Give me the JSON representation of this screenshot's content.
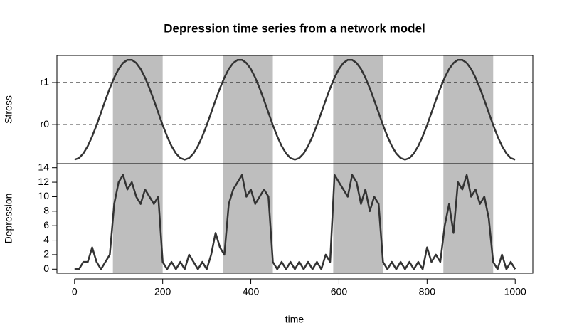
{
  "chart_data": [
    {
      "type": "line",
      "title": "Depression time series from a network model",
      "ylabel": "Stress",
      "color": "#333333",
      "shade_color": "#bebebe",
      "shaded_intervals": [
        [
          87,
          200
        ],
        [
          337,
          450
        ],
        [
          587,
          700
        ],
        [
          837,
          950
        ]
      ],
      "xlim": [
        -40,
        1040
      ],
      "ylim": [
        -0.04,
        1.04
      ],
      "yticks": [
        {
          "value": 0.77,
          "label": "r1"
        },
        {
          "value": 0.35,
          "label": "r0"
        }
      ],
      "grid": true,
      "x": [
        0,
        10,
        20,
        30,
        40,
        50,
        60,
        70,
        80,
        90,
        100,
        110,
        120,
        130,
        140,
        150,
        160,
        170,
        180,
        190,
        200,
        210,
        220,
        230,
        240,
        250,
        260,
        270,
        280,
        290,
        300,
        310,
        320,
        330,
        340,
        350,
        360,
        370,
        380,
        390,
        400,
        410,
        420,
        430,
        440,
        450,
        460,
        470,
        480,
        490,
        500,
        510,
        520,
        530,
        540,
        550,
        560,
        570,
        580,
        590,
        600,
        610,
        620,
        630,
        640,
        650,
        660,
        670,
        680,
        690,
        700,
        710,
        720,
        730,
        740,
        750,
        760,
        770,
        780,
        790,
        800,
        810,
        820,
        830,
        840,
        850,
        860,
        870,
        880,
        890,
        900,
        910,
        920,
        930,
        940,
        950,
        960,
        970,
        980,
        990,
        1000
      ],
      "values": [
        0,
        0.016,
        0.062,
        0.136,
        0.232,
        0.345,
        0.469,
        0.594,
        0.713,
        0.819,
        0.905,
        0.965,
        0.996,
        0.996,
        0.965,
        0.905,
        0.819,
        0.713,
        0.594,
        0.469,
        0.345,
        0.232,
        0.136,
        0.062,
        0.016,
        0,
        0.016,
        0.062,
        0.136,
        0.232,
        0.345,
        0.469,
        0.594,
        0.713,
        0.819,
        0.905,
        0.965,
        0.996,
        0.996,
        0.965,
        0.905,
        0.819,
        0.713,
        0.594,
        0.469,
        0.345,
        0.232,
        0.136,
        0.062,
        0.016,
        0,
        0.016,
        0.062,
        0.136,
        0.232,
        0.345,
        0.469,
        0.594,
        0.713,
        0.819,
        0.905,
        0.965,
        0.996,
        0.996,
        0.965,
        0.905,
        0.819,
        0.713,
        0.594,
        0.469,
        0.345,
        0.232,
        0.136,
        0.062,
        0.016,
        0,
        0.016,
        0.062,
        0.136,
        0.232,
        0.345,
        0.469,
        0.594,
        0.713,
        0.819,
        0.905,
        0.965,
        0.996,
        0.996,
        0.965,
        0.905,
        0.819,
        0.713,
        0.594,
        0.469,
        0.345,
        0.232,
        0.136,
        0.062,
        0.016,
        0
      ]
    },
    {
      "type": "line",
      "ylabel": "Depression",
      "xlabel": "time",
      "color": "#333333",
      "xlim": [
        -40,
        1040
      ],
      "ylim": [
        -0.56,
        14.56
      ],
      "xticks": [
        0,
        200,
        400,
        600,
        800,
        1000
      ],
      "yticks": [
        0,
        2,
        4,
        6,
        8,
        10,
        12,
        14
      ],
      "x": [
        0,
        10,
        20,
        30,
        40,
        50,
        60,
        70,
        80,
        90,
        100,
        110,
        120,
        130,
        140,
        150,
        160,
        170,
        180,
        190,
        200,
        210,
        220,
        230,
        240,
        250,
        260,
        270,
        280,
        290,
        300,
        310,
        320,
        330,
        340,
        350,
        360,
        370,
        380,
        390,
        400,
        410,
        420,
        430,
        440,
        450,
        460,
        470,
        480,
        490,
        500,
        510,
        520,
        530,
        540,
        550,
        560,
        570,
        580,
        590,
        600,
        610,
        620,
        630,
        640,
        650,
        660,
        670,
        680,
        690,
        700,
        710,
        720,
        730,
        740,
        750,
        760,
        770,
        780,
        790,
        800,
        810,
        820,
        830,
        840,
        850,
        860,
        870,
        880,
        890,
        900,
        910,
        920,
        930,
        940,
        950,
        960,
        970,
        980,
        990,
        1000
      ],
      "values": [
        0,
        0,
        1,
        1,
        3,
        1,
        0,
        1,
        2,
        9,
        12,
        13,
        11,
        12,
        10,
        9,
        11,
        10,
        9,
        10,
        1,
        0,
        1,
        0,
        1,
        0,
        2,
        1,
        0,
        1,
        0,
        2,
        5,
        3,
        2,
        9,
        11,
        12,
        13,
        10,
        11,
        9,
        10,
        11,
        10,
        1,
        0,
        1,
        0,
        1,
        0,
        1,
        0,
        1,
        0,
        1,
        0,
        2,
        1,
        13,
        12,
        11,
        10,
        13,
        12,
        9,
        11,
        8,
        10,
        9,
        1,
        0,
        1,
        0,
        1,
        0,
        1,
        0,
        1,
        0,
        3,
        1,
        2,
        1,
        6,
        9,
        5,
        12,
        11,
        13,
        10,
        11,
        9,
        10,
        7,
        1,
        0,
        2,
        0,
        1,
        0
      ]
    }
  ]
}
